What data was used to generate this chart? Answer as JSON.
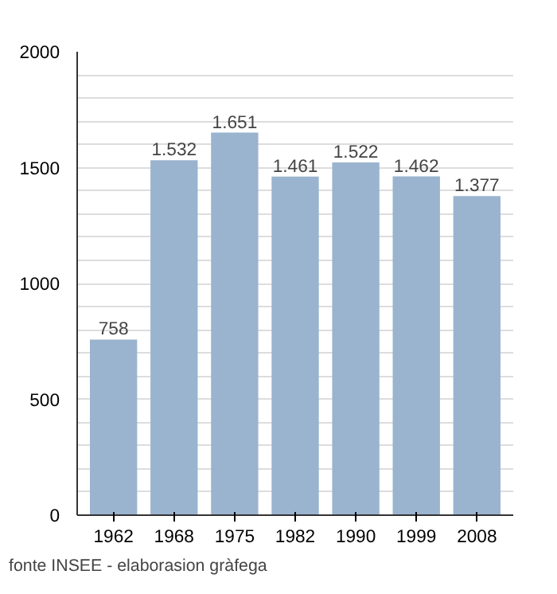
{
  "chart_data": {
    "type": "bar",
    "categories": [
      "1962",
      "1968",
      "1975",
      "1982",
      "1990",
      "1999",
      "2008"
    ],
    "values": [
      758,
      1532,
      1651,
      1461,
      1522,
      1462,
      1377
    ],
    "value_labels": [
      "758",
      "1.532",
      "1.651",
      "1.461",
      "1.522",
      "1.462",
      "1.377"
    ],
    "color": "#9ab4cf",
    "ylim": [
      0,
      2000
    ],
    "yticks": [
      0,
      {
        "value": 100,
        "label": null
      },
      {
        "value": 200,
        "label": null
      },
      {
        "value": 300,
        "label": null
      },
      {
        "value": 400,
        "label": null
      },
      500,
      {
        "value": 600,
        "label": null
      },
      {
        "value": 700,
        "label": null
      },
      {
        "value": 800,
        "label": null
      },
      {
        "value": 900,
        "label": null
      },
      1000,
      {
        "value": 1100,
        "label": null
      },
      {
        "value": 1200,
        "label": null
      },
      {
        "value": 1300,
        "label": null
      },
      {
        "value": 1400,
        "label": null
      },
      1500,
      {
        "value": 1600,
        "label": null
      },
      {
        "value": 1700,
        "label": null
      },
      {
        "value": 1800,
        "label": null
      },
      {
        "value": 1900,
        "label": null
      },
      2000
    ],
    "grid": "y",
    "annotations": [
      "fonte INSEE - elaborasion gràfega"
    ]
  }
}
